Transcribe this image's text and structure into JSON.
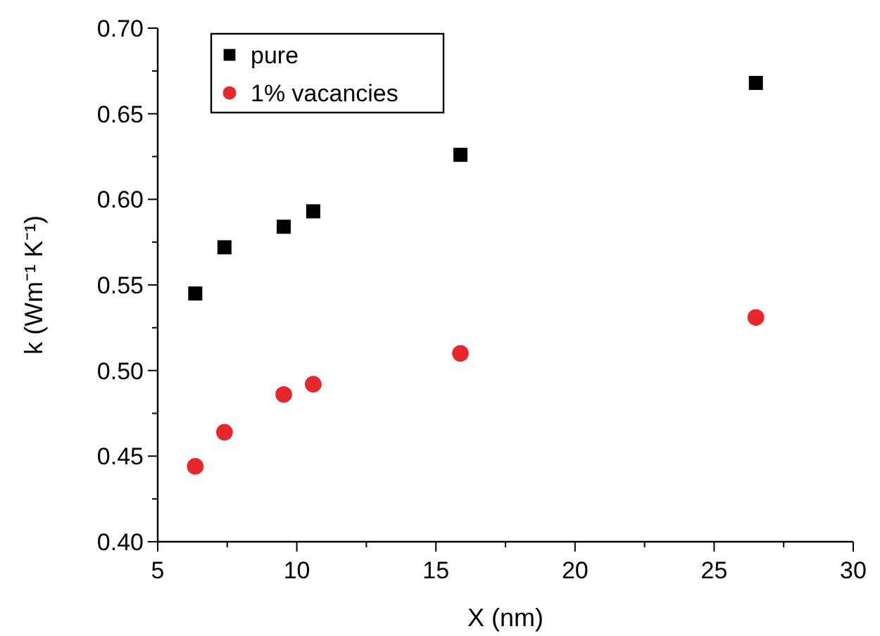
{
  "chart_data": {
    "type": "scatter",
    "xlabel": "X (nm)",
    "ylabel": "k (Wm⁻¹ K⁻¹)",
    "xlim": [
      5,
      30
    ],
    "ylim": [
      0.4,
      0.7
    ],
    "xticks": [
      5,
      {
        "value": 7.5,
        "label": null
      },
      10,
      {
        "value": 12.5,
        "label": null
      },
      15,
      {
        "value": 17.5,
        "label": null
      },
      20,
      {
        "value": 22.5,
        "label": null
      },
      25,
      {
        "value": 27.5,
        "label": null
      },
      30
    ],
    "yticks": [
      {
        "value": 0.4,
        "label": "0.40"
      },
      {
        "value": 0.425,
        "label": null
      },
      {
        "value": 0.45,
        "label": "0.45"
      },
      {
        "value": 0.475,
        "label": null
      },
      {
        "value": 0.5,
        "label": "0.50"
      },
      {
        "value": 0.525,
        "label": null
      },
      {
        "value": 0.55,
        "label": "0.55"
      },
      {
        "value": 0.575,
        "label": null
      },
      {
        "value": 0.6,
        "label": "0.60"
      },
      {
        "value": 0.625,
        "label": null
      },
      {
        "value": 0.65,
        "label": "0.65"
      },
      {
        "value": 0.675,
        "label": null
      },
      {
        "value": 0.7,
        "label": "0.70"
      }
    ],
    "x": [
      6.35,
      7.4,
      9.53,
      10.59,
      15.88,
      26.5
    ],
    "legend": "top left",
    "grid": false,
    "series": [
      {
        "name": "pure",
        "color": "#000000",
        "marker": "square",
        "values": [
          0.545,
          0.572,
          0.584,
          0.593,
          0.626,
          0.668
        ]
      },
      {
        "name": "1% vacancies",
        "color": "#e8262d",
        "marker": "circle",
        "values": [
          0.444,
          0.464,
          0.486,
          0.492,
          0.51,
          0.531
        ]
      }
    ]
  }
}
